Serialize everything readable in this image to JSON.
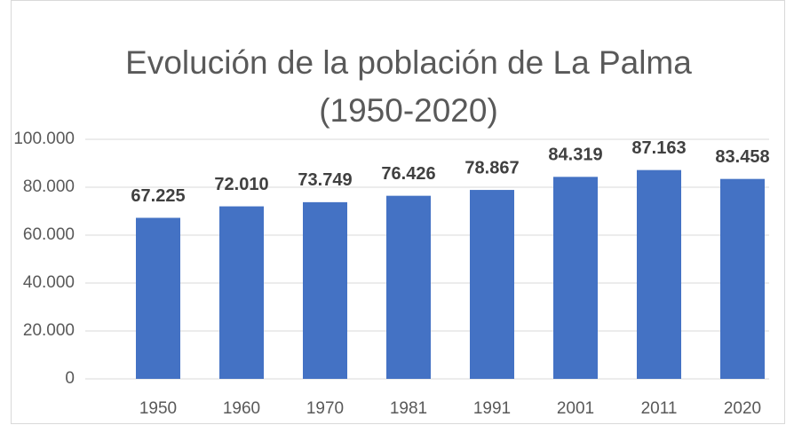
{
  "chart_data": {
    "type": "bar",
    "title": "Evolución de la población de La Palma (1950-2020)",
    "categories": [
      "1950",
      "1960",
      "1970",
      "1981",
      "1991",
      "2001",
      "2011",
      "2020"
    ],
    "values": [
      67225,
      72010,
      73749,
      76426,
      78867,
      84319,
      87163,
      83458
    ],
    "value_labels": [
      "67.225",
      "72.010",
      "73.749",
      "76.426",
      "78.867",
      "84.319",
      "87.163",
      "83.458"
    ],
    "color": "#4472c4",
    "ylim": [
      0,
      100000
    ],
    "yticks": [
      0,
      {
        "value": 20000,
        "label": "20.000"
      },
      {
        "value": 40000,
        "label": "40.000"
      },
      {
        "value": 60000,
        "label": "60.000"
      },
      {
        "value": 80000,
        "label": "80.000"
      },
      {
        "value": 100000,
        "label": "100.000"
      }
    ],
    "grid": true
  }
}
